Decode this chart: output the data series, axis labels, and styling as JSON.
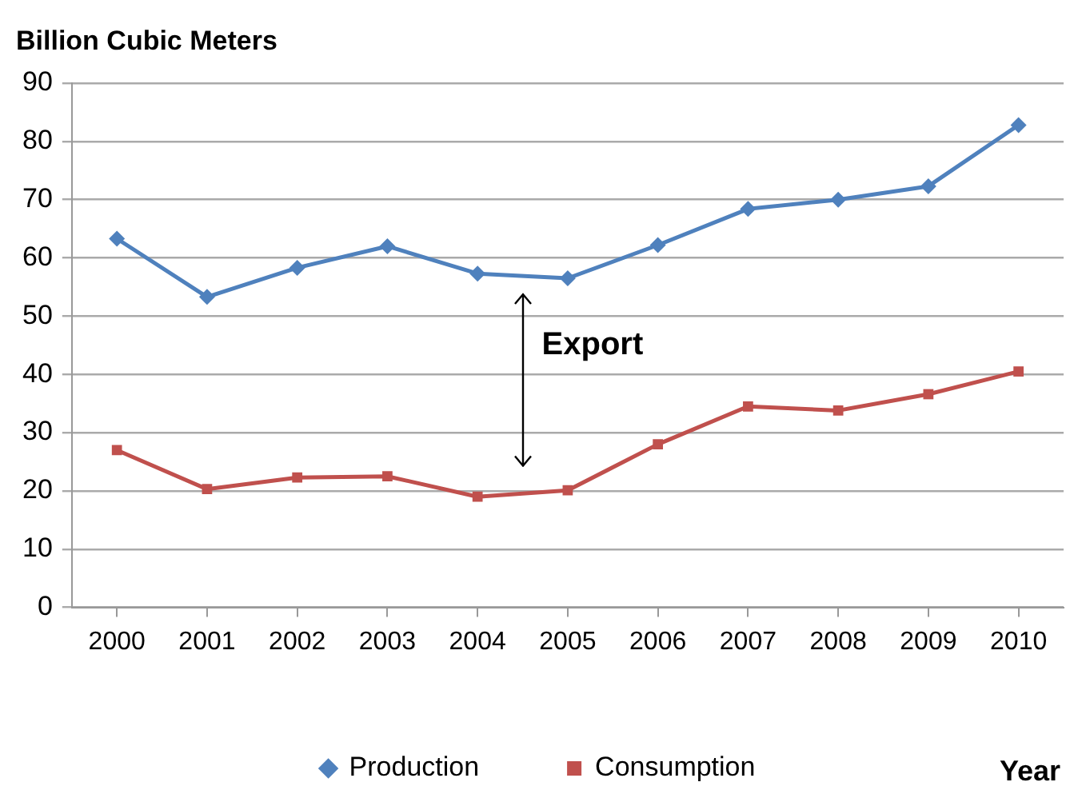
{
  "chart_data": {
    "type": "line",
    "ylabel": "Billion Cubic Meters",
    "xlabel": "Year",
    "categories": [
      "2000",
      "2001",
      "2002",
      "2003",
      "2004",
      "2005",
      "2006",
      "2007",
      "2008",
      "2009",
      "2010"
    ],
    "series": [
      {
        "name": "Production",
        "color": "#4f81bd",
        "marker": "diamond",
        "values": [
          63.3,
          53.3,
          58.3,
          62,
          57.3,
          56.5,
          62.2,
          68.4,
          70,
          72.3,
          82.8
        ]
      },
      {
        "name": "Consumption",
        "color": "#c0504d",
        "marker": "square",
        "values": [
          27,
          20.3,
          22.3,
          22.5,
          19,
          20.1,
          28,
          34.5,
          33.8,
          36.6,
          40.5
        ]
      }
    ],
    "ylim": [
      0,
      90
    ],
    "yticks": [
      0,
      10,
      20,
      30,
      40,
      50,
      60,
      70,
      80,
      90
    ],
    "grid": "y",
    "legend": "bottom",
    "line_style": "solid",
    "annotations": [
      "Export"
    ]
  }
}
